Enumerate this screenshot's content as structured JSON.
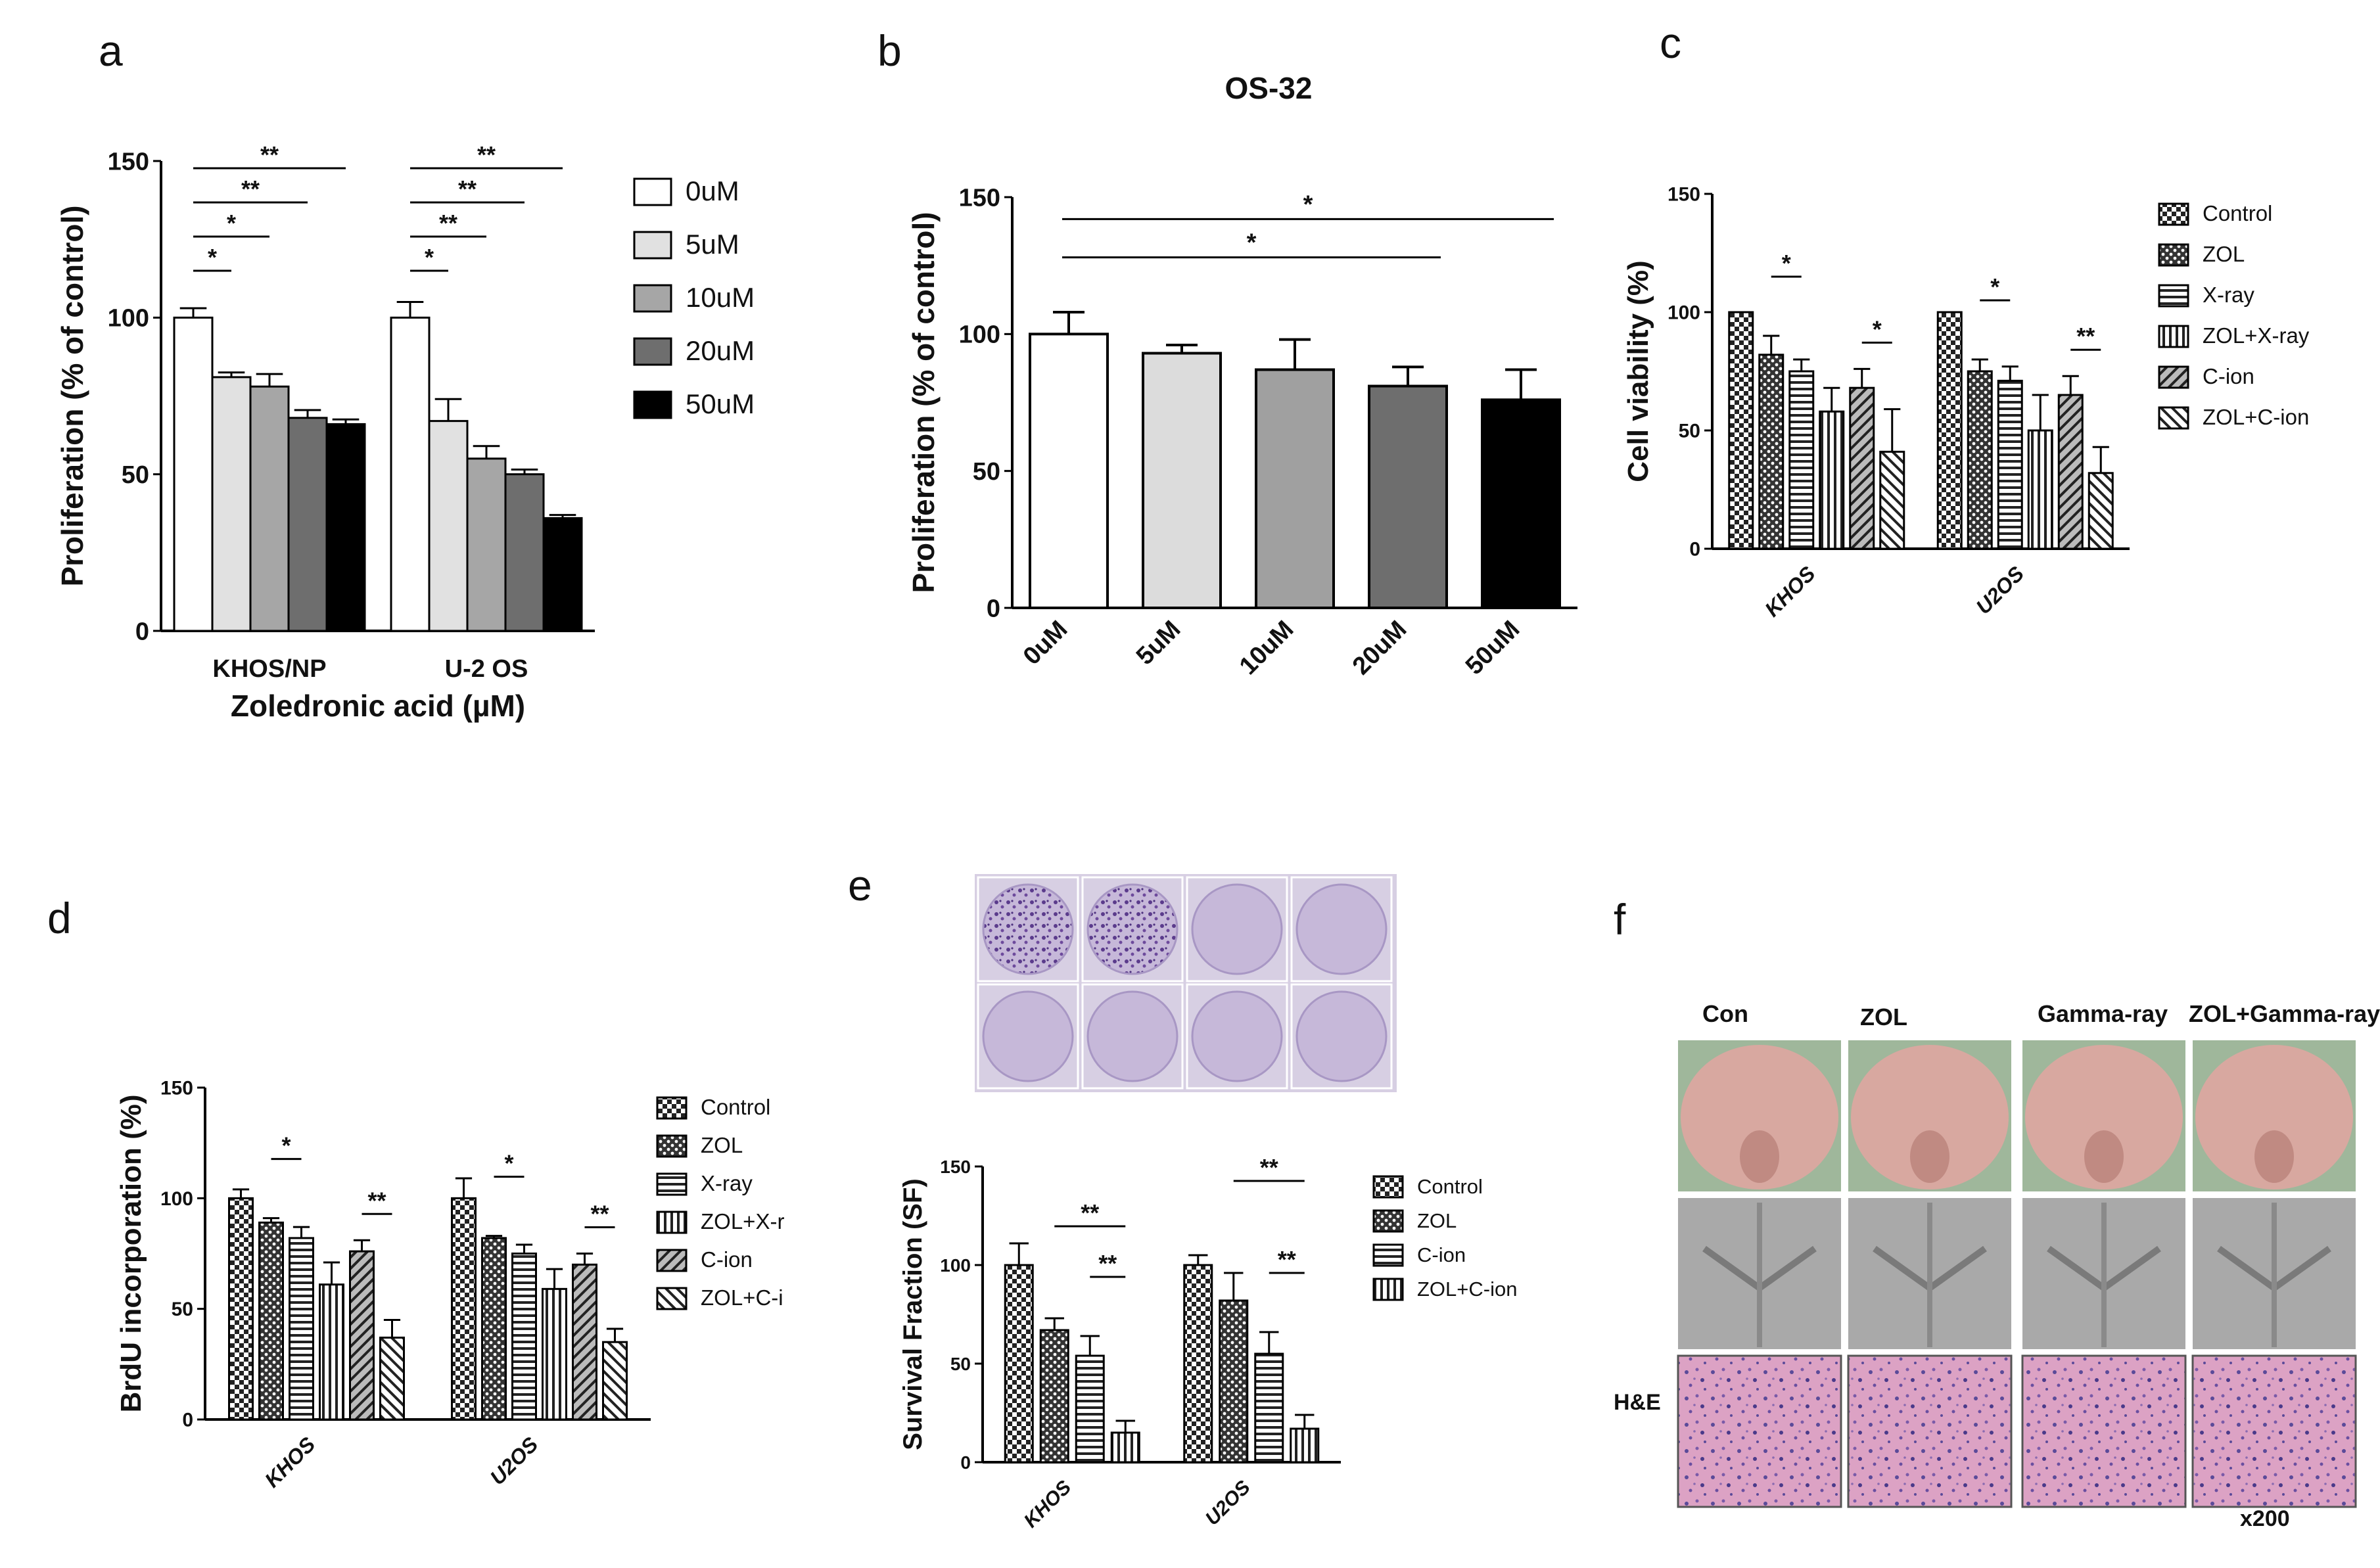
{
  "panel_letters": {
    "a": "a",
    "b": "b",
    "c": "c",
    "d": "d",
    "e": "e",
    "f": "f"
  },
  "chart_data": [
    {
      "id": "a",
      "type": "bar",
      "title": "",
      "categories": [
        "KHOS/NP",
        "U-2 OS"
      ],
      "series": [
        {
          "name": "0uM",
          "values": [
            100,
            100
          ],
          "errors": [
            3,
            5
          ],
          "fill": "#ffffff"
        },
        {
          "name": "5uM",
          "values": [
            81,
            67
          ],
          "errors": [
            1.5,
            7
          ],
          "fill": "#e1e1e1"
        },
        {
          "name": "10uM",
          "values": [
            78,
            55
          ],
          "errors": [
            4,
            4
          ],
          "fill": "#a6a6a6"
        },
        {
          "name": "20uM",
          "values": [
            68,
            50
          ],
          "errors": [
            2.5,
            1.5
          ],
          "fill": "#6e6e6e"
        },
        {
          "name": "50uM",
          "values": [
            66,
            36
          ],
          "errors": [
            1.5,
            1
          ],
          "fill": "#000000"
        }
      ],
      "ylim": [
        0,
        150
      ],
      "yticks": [
        0,
        50,
        100,
        150
      ],
      "ylabel": "Proliferation (% of control)",
      "xlabel": "Zoledronic acid (µM)",
      "significance": [
        {
          "group": 0,
          "from": 0,
          "to": 1,
          "label": "*",
          "level": 1
        },
        {
          "group": 0,
          "from": 0,
          "to": 2,
          "label": "*",
          "level": 2
        },
        {
          "group": 0,
          "from": 0,
          "to": 3,
          "label": "**",
          "level": 3
        },
        {
          "group": 0,
          "from": 0,
          "to": 4,
          "label": "**",
          "level": 4
        },
        {
          "group": 1,
          "from": 0,
          "to": 1,
          "label": "*",
          "level": 1
        },
        {
          "group": 1,
          "from": 0,
          "to": 2,
          "label": "**",
          "level": 2
        },
        {
          "group": 1,
          "from": 0,
          "to": 3,
          "label": "**",
          "level": 3
        },
        {
          "group": 1,
          "from": 0,
          "to": 4,
          "label": "**",
          "level": 4
        }
      ]
    },
    {
      "id": "b",
      "type": "bar",
      "title": "OS-32",
      "categories": [
        "0uM",
        "5uM",
        "10uM",
        "20uM",
        "50uM"
      ],
      "values": [
        100,
        93,
        87,
        81,
        76
      ],
      "errors": [
        8,
        3,
        11,
        7,
        11
      ],
      "fills": [
        "#ffffff",
        "#dcdcdc",
        "#a0a0a0",
        "#6e6e6e",
        "#000000"
      ],
      "ylim": [
        0,
        150
      ],
      "yticks": [
        0,
        50,
        100,
        150
      ],
      "ylabel": "Proliferation (% of control)",
      "xlabel": "",
      "significance": [
        {
          "from": 0,
          "to": 3,
          "label": "*",
          "level": 1
        },
        {
          "from": 0,
          "to": 4,
          "label": "*",
          "level": 2
        }
      ]
    },
    {
      "id": "c",
      "type": "bar",
      "title": "",
      "categories": [
        "KHOS",
        "U2OS"
      ],
      "series": [
        {
          "name": "Control",
          "values": [
            100,
            100
          ],
          "errors": [
            0,
            0
          ],
          "pattern": "checker"
        },
        {
          "name": "ZOL",
          "values": [
            82,
            75
          ],
          "errors": [
            8,
            5
          ],
          "pattern": "dots"
        },
        {
          "name": "X-ray",
          "values": [
            75,
            71
          ],
          "errors": [
            5,
            6
          ],
          "pattern": "hlines"
        },
        {
          "name": "ZOL+X-ray",
          "values": [
            58,
            50
          ],
          "errors": [
            10,
            15
          ],
          "pattern": "vlines"
        },
        {
          "name": "C-ion",
          "values": [
            68,
            65
          ],
          "errors": [
            8,
            8
          ],
          "pattern": "diag"
        },
        {
          "name": "ZOL+C-ion",
          "values": [
            41,
            32
          ],
          "errors": [
            18,
            11
          ],
          "pattern": "diag2"
        }
      ],
      "ylim": [
        0,
        150
      ],
      "yticks": [
        0,
        50,
        100,
        150
      ],
      "ylabel": "Cell viability (%)",
      "xlabel": "",
      "significance": [
        {
          "group": 0,
          "from": 1,
          "to": 2,
          "label": "*",
          "level": 1
        },
        {
          "group": 0,
          "from": 4,
          "to": 5,
          "label": "*",
          "level": 0
        },
        {
          "group": 1,
          "from": 1,
          "to": 2,
          "label": "*",
          "level": 1
        },
        {
          "group": 1,
          "from": 4,
          "to": 5,
          "label": "**",
          "level": 0
        }
      ]
    },
    {
      "id": "d",
      "type": "bar",
      "title": "",
      "categories": [
        "KHOS",
        "U2OS"
      ],
      "series": [
        {
          "name": "Control",
          "values": [
            100,
            100
          ],
          "errors": [
            4,
            9
          ],
          "pattern": "checker"
        },
        {
          "name": "ZOL",
          "values": [
            89,
            82
          ],
          "errors": [
            2,
            1
          ],
          "pattern": "dots"
        },
        {
          "name": "X-ray",
          "values": [
            82,
            75
          ],
          "errors": [
            5,
            4
          ],
          "pattern": "hlines"
        },
        {
          "name": "ZOL+X-r",
          "values": [
            61,
            59
          ],
          "errors": [
            10,
            9
          ],
          "pattern": "vlines"
        },
        {
          "name": "C-ion",
          "values": [
            76,
            70
          ],
          "errors": [
            5,
            5
          ],
          "pattern": "diag"
        },
        {
          "name": "ZOL+C-i",
          "values": [
            37,
            35
          ],
          "errors": [
            8,
            6
          ],
          "pattern": "diag2"
        }
      ],
      "ylim": [
        0,
        150
      ],
      "yticks": [
        0,
        50,
        100,
        150
      ],
      "ylabel": "BrdU incorporation (%)",
      "xlabel": "",
      "significance": [
        {
          "group": 0,
          "from": 1,
          "to": 2,
          "label": "*",
          "level": 1
        },
        {
          "group": 0,
          "from": 4,
          "to": 5,
          "label": "**",
          "level": 0
        },
        {
          "group": 1,
          "from": 1,
          "to": 2,
          "label": "*",
          "level": 1
        },
        {
          "group": 1,
          "from": 4,
          "to": 5,
          "label": "**",
          "level": 0
        }
      ]
    },
    {
      "id": "e",
      "type": "bar",
      "title": "",
      "categories": [
        "KHOS",
        "U2OS"
      ],
      "series": [
        {
          "name": "Control",
          "values": [
            100,
            100
          ],
          "errors": [
            11,
            5
          ],
          "pattern": "checker"
        },
        {
          "name": "ZOL",
          "values": [
            67,
            82
          ],
          "errors": [
            6,
            14
          ],
          "pattern": "dots"
        },
        {
          "name": "C-ion",
          "values": [
            54,
            55
          ],
          "errors": [
            10,
            11
          ],
          "pattern": "hlines"
        },
        {
          "name": "ZOL+C-ion",
          "values": [
            15,
            17
          ],
          "errors": [
            6,
            7
          ],
          "pattern": "vlines"
        }
      ],
      "ylim": [
        0,
        150
      ],
      "yticks": [
        0,
        50,
        100,
        150
      ],
      "ylabel": "Survival Fraction (SF)",
      "xlabel": "",
      "significance": [
        {
          "group": 0,
          "from": 1,
          "to": 3,
          "label": "**",
          "level": 2
        },
        {
          "group": 0,
          "from": 2,
          "to": 3,
          "label": "**",
          "level": 1
        },
        {
          "group": 1,
          "from": 1,
          "to": 3,
          "label": "**",
          "level": 2
        },
        {
          "group": 1,
          "from": 2,
          "to": 3,
          "label": "**",
          "level": 1
        }
      ]
    }
  ],
  "panel_f": {
    "columns": [
      "Con",
      "ZOL",
      "Gamma-ray",
      "ZOL+Gamma-ray"
    ],
    "row_label": "H&E",
    "magnification": "x200"
  },
  "colors": {
    "plate_bg": "#d7cfe3",
    "dish": "#c6b8d9",
    "colony": "#5b3b8c",
    "skin": "#d8a8a0",
    "xray": "#a9a9a9",
    "he_pink": "#dca2c4",
    "he_nuclei": "#4a3a8a"
  }
}
